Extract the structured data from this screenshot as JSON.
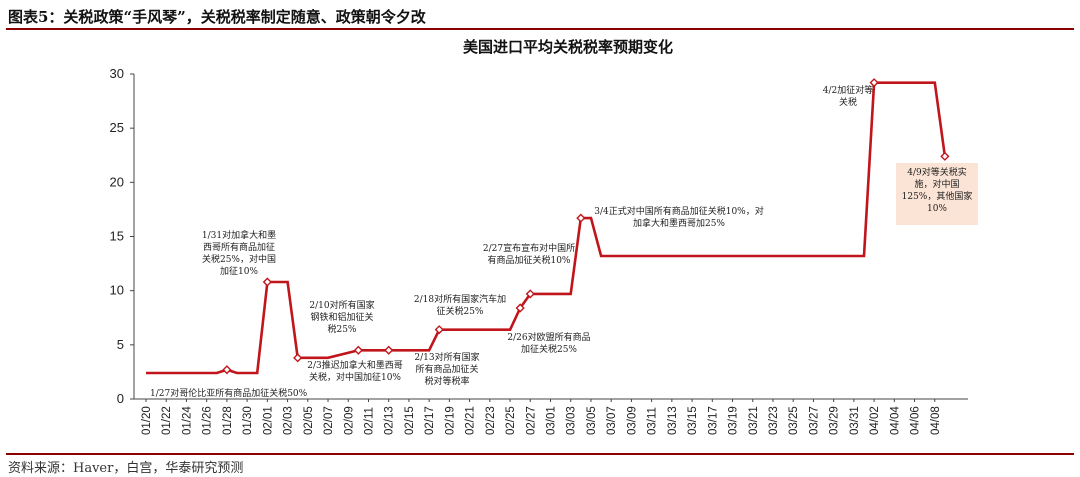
{
  "header": {
    "title": "图表5：关税政策“手风琴”，关税税率制定随意、政策朝令夕改"
  },
  "footer": {
    "source": "资料来源：Haver，白宫，华泰研究预测"
  },
  "colors": {
    "line": "#c0151b",
    "accent_rule": "#8b0000",
    "highlight_box": "#fbe4d5"
  },
  "chart_data": {
    "type": "line",
    "title": "美国进口平均关税税率预期变化",
    "xlabel": "",
    "ylabel": "",
    "ylim": [
      0,
      30
    ],
    "yticks": [
      0,
      5,
      10,
      15,
      20,
      25,
      30
    ],
    "grid": false,
    "xtick_labels": [
      "01/20",
      "01/22",
      "01/24",
      "01/26",
      "01/28",
      "01/30",
      "02/01",
      "02/03",
      "02/05",
      "02/07",
      "02/09",
      "02/11",
      "02/13",
      "02/15",
      "02/17",
      "02/19",
      "02/21",
      "02/23",
      "02/25",
      "02/27",
      "03/01",
      "03/03",
      "03/05",
      "03/07",
      "03/09",
      "03/11",
      "03/13",
      "03/15",
      "03/17",
      "03/19",
      "03/21",
      "03/23",
      "03/25",
      "03/27",
      "03/29",
      "03/31",
      "04/02",
      "04/04",
      "04/06",
      "04/08"
    ],
    "series": [
      {
        "points": [
          {
            "x": "01/20",
            "y": 2.4
          },
          {
            "x": "01/27",
            "y": 2.4
          },
          {
            "x": "01/28",
            "y": 2.7,
            "marker": true
          },
          {
            "x": "01/29",
            "y": 2.4
          },
          {
            "x": "01/31",
            "y": 2.4
          },
          {
            "x": "02/01",
            "y": 10.8,
            "marker": true
          },
          {
            "x": "02/03",
            "y": 10.8
          },
          {
            "x": "02/04",
            "y": 3.8,
            "marker": true
          },
          {
            "x": "02/07",
            "y": 3.8
          },
          {
            "x": "02/10",
            "y": 4.5,
            "marker": true
          },
          {
            "x": "02/13",
            "y": 4.5,
            "marker": true
          },
          {
            "x": "02/17",
            "y": 4.5
          },
          {
            "x": "02/18",
            "y": 6.4,
            "marker": true
          },
          {
            "x": "02/25",
            "y": 6.4
          },
          {
            "x": "02/26",
            "y": 8.4,
            "marker": true
          },
          {
            "x": "02/27",
            "y": 9.7,
            "marker": true
          },
          {
            "x": "03/03",
            "y": 9.7
          },
          {
            "x": "03/04",
            "y": 16.7,
            "marker": true
          },
          {
            "x": "03/05",
            "y": 16.7
          },
          {
            "x": "03/06",
            "y": 13.2
          },
          {
            "x": "04/01",
            "y": 13.2
          },
          {
            "x": "04/02",
            "y": 29.2,
            "marker": true
          },
          {
            "x": "04/08",
            "y": 29.2
          },
          {
            "x": "04/09",
            "y": 22.4,
            "marker": true
          }
        ]
      }
    ],
    "annotations": [
      {
        "lines": [
          "1/27对哥伦比亚所有商品加征关税50%"
        ]
      },
      {
        "lines": [
          "1/31对加拿大和墨",
          "西哥所有商品加征",
          "关税25%，对中国",
          "加征10%"
        ]
      },
      {
        "lines": [
          "2/3推迟加拿大和墨西哥",
          "关税，对中国加征10%"
        ]
      },
      {
        "lines": [
          "2/10对所有国家",
          "钢铁和铝加征关",
          "税25%"
        ]
      },
      {
        "lines": [
          "2/13对所有国家",
          "所有商品加征关",
          "税对等税率"
        ]
      },
      {
        "lines": [
          "2/18对所有国家汽车加",
          "征关税25%"
        ]
      },
      {
        "lines": [
          "2/26对欧盟所有商品",
          "加征关税25%"
        ]
      },
      {
        "lines": [
          "2/27宣布宣布对中国所",
          "有商品加征关税10%"
        ]
      },
      {
        "lines": [
          "3/4正式对中国所有商品加征关税10%，对",
          "加拿大和墨西哥加25%"
        ]
      },
      {
        "lines": [
          "4/2加征对等",
          "关税"
        ]
      },
      {
        "lines": [
          "4/9对等关税实",
          "施，对中国",
          "125%，其他国家",
          "10%"
        ],
        "highlight": true
      }
    ]
  }
}
